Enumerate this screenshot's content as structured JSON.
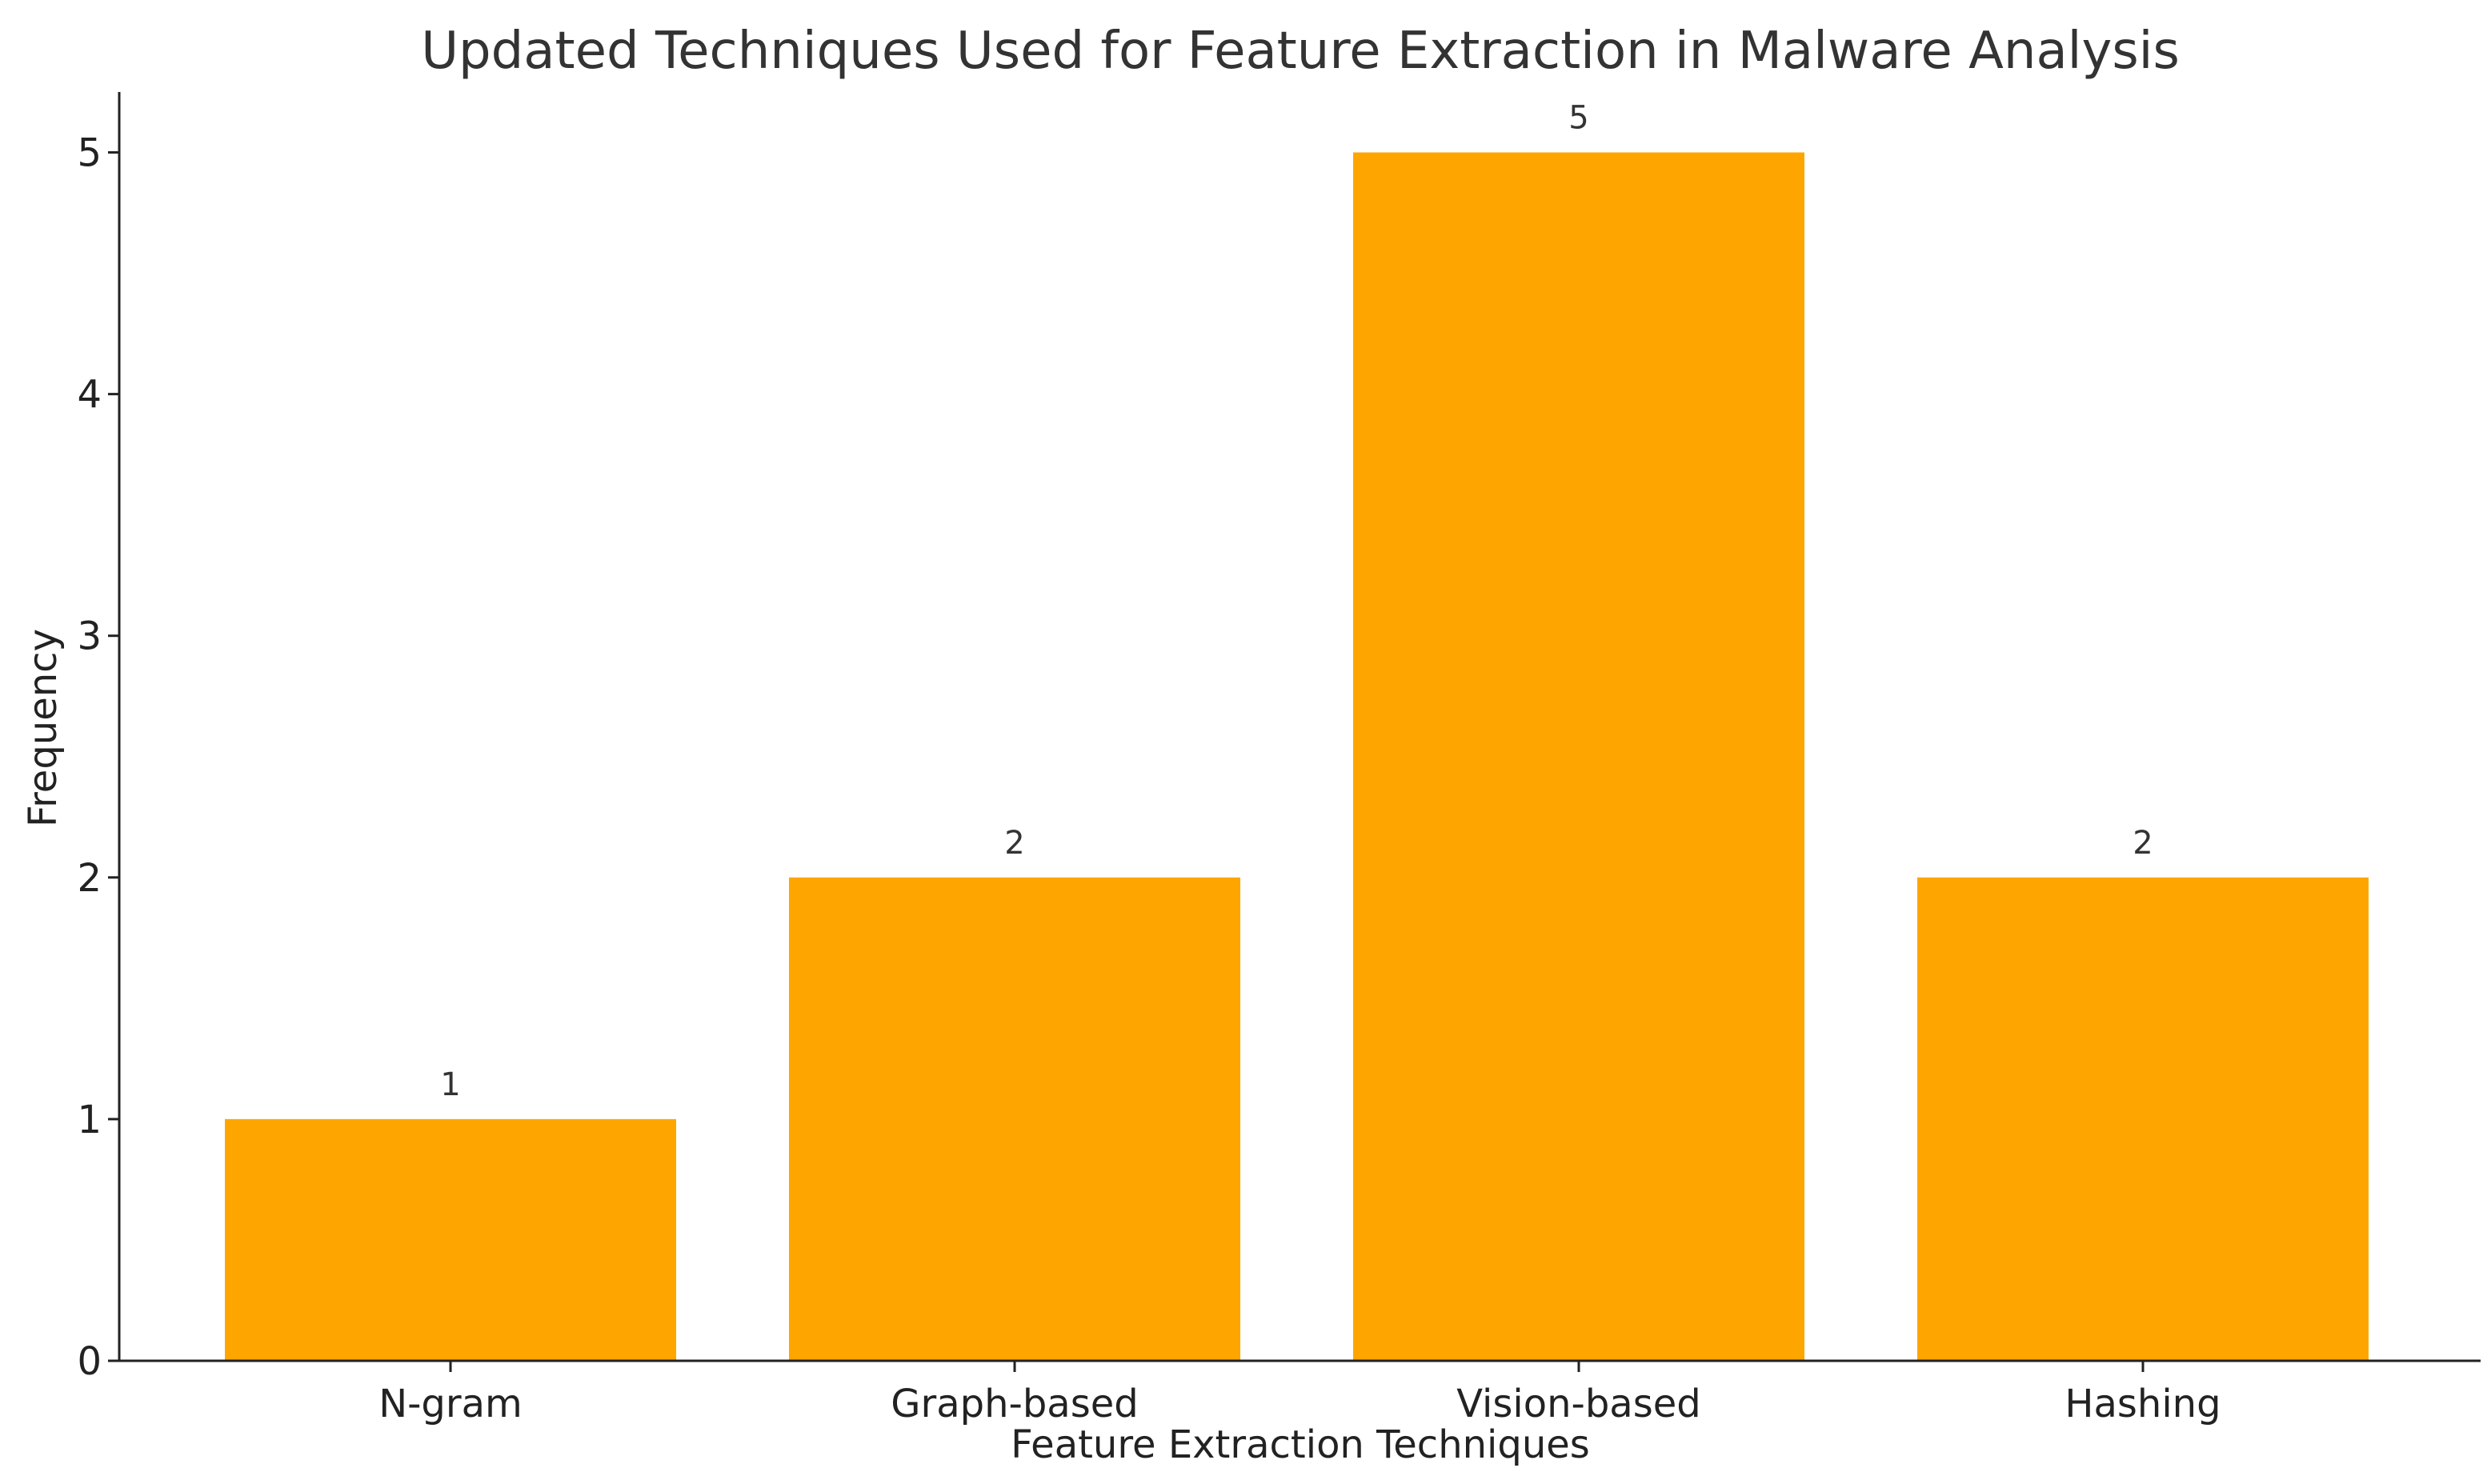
{
  "chart_data": {
    "type": "bar",
    "title": "Updated Techniques Used for Feature Extraction in Malware Analysis",
    "xlabel": "Feature Extraction Techniques",
    "ylabel": "Frequency",
    "categories": [
      "N-gram",
      "Graph-based",
      "Vision-based",
      "Hashing"
    ],
    "values": [
      1,
      2,
      5,
      2
    ],
    "data_labels": [
      "1",
      "2",
      "5",
      "2"
    ],
    "ylim": [
      0,
      5.25
    ],
    "yticks": [
      0,
      1,
      2,
      3,
      4,
      5
    ],
    "grid": false,
    "legend": "none",
    "bar_color": "#FFA500"
  }
}
